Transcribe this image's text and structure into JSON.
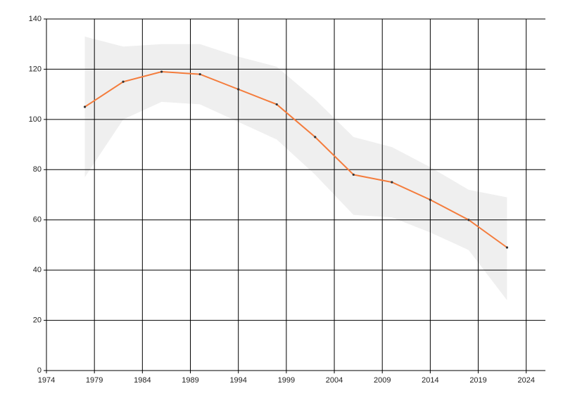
{
  "chart_data": {
    "type": "line",
    "x": [
      1978,
      1982,
      1986,
      1990,
      1994,
      1998,
      2002,
      2006,
      2010,
      2014,
      2018,
      2022
    ],
    "values": [
      105,
      115,
      119,
      118,
      112,
      106,
      93,
      78,
      75,
      68,
      60,
      49
    ],
    "band_upper": [
      133,
      129,
      130,
      130,
      125,
      121,
      108,
      93,
      89,
      81,
      72,
      69
    ],
    "band_lower": [
      77,
      100,
      107,
      106,
      99,
      92,
      78,
      62,
      61,
      55,
      48,
      28
    ],
    "color": "#f47c3c",
    "band_color": "#efefef",
    "point_color": "#333333",
    "xlim": [
      1974,
      2026
    ],
    "xticks": [
      1974,
      1979,
      1984,
      1989,
      1994,
      1999,
      2004,
      2009,
      2014,
      2019,
      2024
    ],
    "ylim": [
      0,
      140
    ],
    "yticks": [
      0,
      20,
      40,
      60,
      80,
      100,
      120,
      140
    ],
    "grid": true
  }
}
